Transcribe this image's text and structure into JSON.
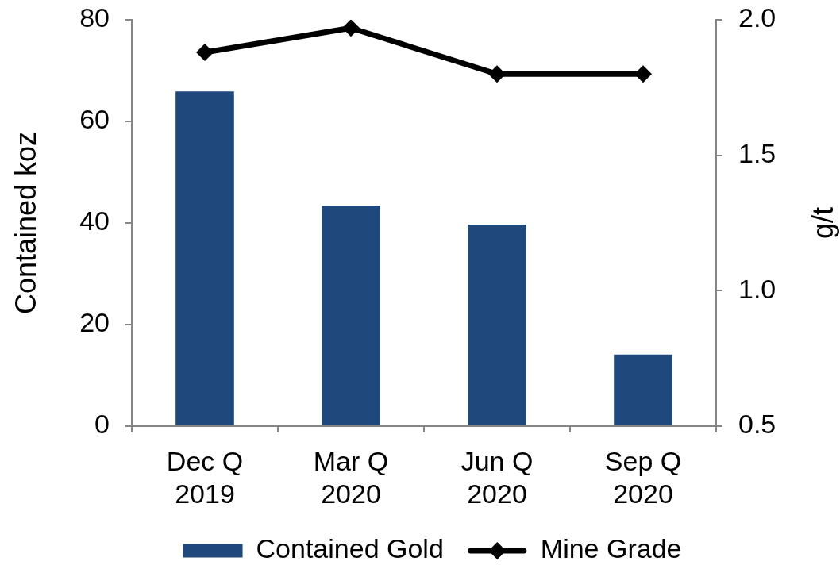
{
  "chart_data": {
    "type": "bar",
    "categories": [
      "Dec Q 2019",
      "Mar Q 2020",
      "Jun Q 2020",
      "Sep Q 2020"
    ],
    "series": [
      {
        "name": "Contained Gold",
        "color": "#1f497d",
        "values": [
          65.9,
          43.4,
          39.7,
          14.1
        ]
      },
      {
        "name": "Mine Grade",
        "type": "line",
        "axis": "y2",
        "color": "#000000",
        "values": [
          1.88,
          1.97,
          1.8,
          1.8
        ]
      }
    ],
    "ylabel": "Contained koz",
    "y2label": "g/t",
    "ylim": [
      0,
      80
    ],
    "yticks": [
      0,
      20,
      40,
      60,
      80
    ],
    "y2lim": [
      0.5,
      2.0
    ],
    "y2ticks": [
      0.5,
      {
        "value": 1,
        "label": "1.0"
      },
      1.5,
      {
        "value": 2,
        "label": "2.0"
      }
    ],
    "legend": "bottom",
    "marker": "diamond",
    "line_style": "solid"
  }
}
